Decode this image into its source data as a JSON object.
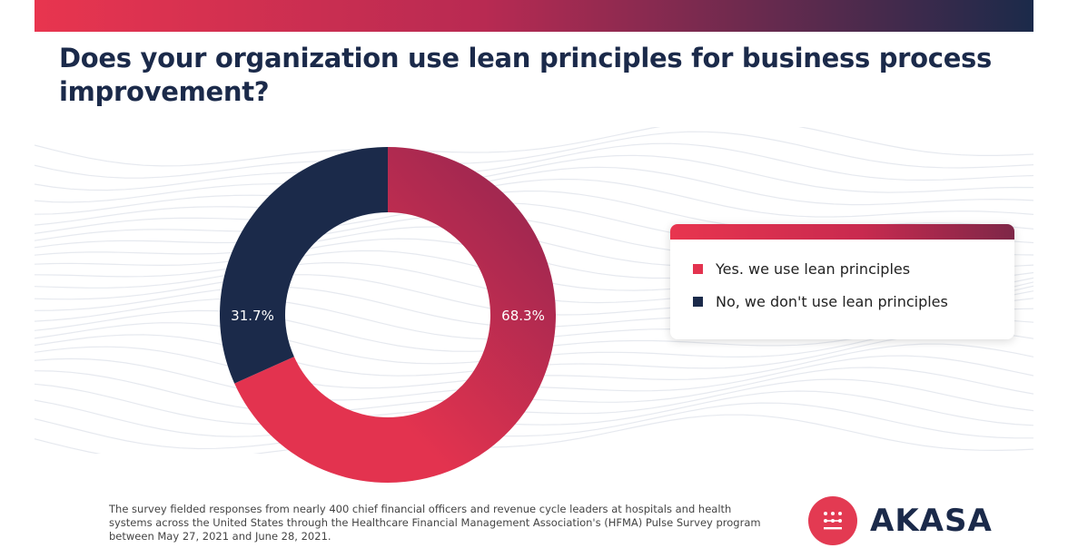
{
  "title": "Does your organization use lean principles for business process improvement?",
  "chart_data": {
    "type": "pie",
    "donut": true,
    "title": "Does your organization use lean principles for business process improvement?",
    "categories": [
      "Yes. we use lean principles",
      "No, we don't use lean principles"
    ],
    "values": [
      68.3,
      31.7
    ],
    "labels": [
      "68.3%",
      "31.7%"
    ],
    "colors": [
      "#e3334f",
      "#1b2a4a"
    ],
    "legend_position": "right"
  },
  "legend": {
    "items": [
      {
        "label": "Yes. we use lean principles",
        "color": "#e3334f"
      },
      {
        "label": "No, we don't use lean principles",
        "color": "#1b2a4a"
      }
    ]
  },
  "footnote": "The survey fielded responses from nearly 400 chief financial officers and revenue cycle leaders at hospitals and health systems across the United States through the Healthcare Financial Management Association's (HFMA) Pulse Survey program between May 27, 2021 and June 28, 2021.",
  "logo": {
    "text": "AKASA",
    "icon": "akasa-logo-icon",
    "color": "#e33a52"
  }
}
